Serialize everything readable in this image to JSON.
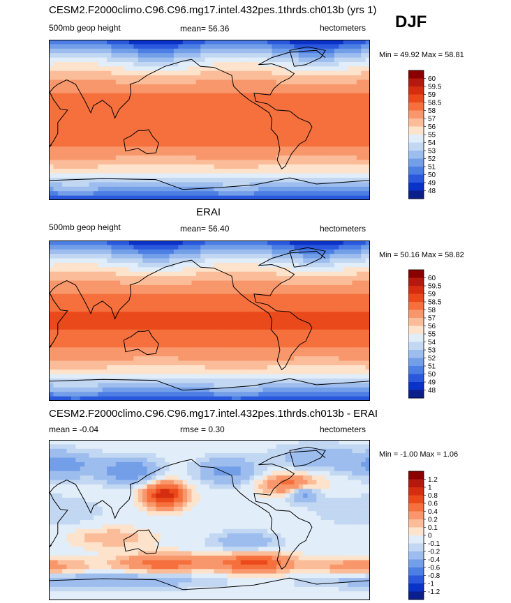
{
  "season": "DJF",
  "panels": [
    {
      "title": "CESM2.F2000climo.C96.C96.mg17.intel.432pes.1thrds.ch013b (yrs 1)",
      "left_label": "500mb geop height",
      "center_label": "mean=  56.36",
      "right_label": "hectometers",
      "minmax": "Min =  49.92 Max =  58.81"
    },
    {
      "title": "ERAI",
      "left_label": "500mb geop height",
      "center_label": "mean=  56.40",
      "right_label": "hectometers",
      "minmax": "Min =  50.16 Max =  58.82"
    },
    {
      "title": "CESM2.F2000climo.C96.C96.mg17.intel.432pes.1thrds.ch013b - ERAI",
      "left_label": "mean =  -0.04",
      "center_label": "rmse =   0.30",
      "right_label": "hectometers",
      "minmax": "Min =  -1.00 Max =   1.06"
    }
  ],
  "chart_data": [
    {
      "type": "heatmap",
      "title": "CESM2.F2000climo.C96.C96.mg17.intel.432pes.1thrds.ch013b (yrs 1)",
      "variable": "500mb geop height",
      "units": "hectometers",
      "mean": 56.36,
      "min": 49.92,
      "max": 58.81,
      "colorbar_levels": [
        "60",
        "59.5",
        "59",
        "58.5",
        "58",
        "57",
        "56",
        "55",
        "54",
        "53",
        "52",
        "51",
        "50",
        "49",
        "48"
      ],
      "colorbar_colors": [
        "#8b0000",
        "#b3190c",
        "#d42d0f",
        "#ea4a1b",
        "#f5703d",
        "#f8976b",
        "#fbbd99",
        "#fde3cc",
        "#e1edf8",
        "#c2d7f2",
        "#9dbdee",
        "#739ee8",
        "#4c7ee3",
        "#2a58dc",
        "#0b32c6",
        "#0a1e8c"
      ]
    },
    {
      "type": "heatmap",
      "title": "ERAI",
      "variable": "500mb geop height",
      "units": "hectometers",
      "mean": 56.4,
      "min": 50.16,
      "max": 58.82,
      "colorbar_levels": [
        "60",
        "59.5",
        "59",
        "58.5",
        "58",
        "57",
        "56",
        "55",
        "54",
        "53",
        "52",
        "51",
        "50",
        "49",
        "48"
      ],
      "colorbar_colors": [
        "#8b0000",
        "#b3190c",
        "#d42d0f",
        "#ea4a1b",
        "#f5703d",
        "#f8976b",
        "#fbbd99",
        "#fde3cc",
        "#e1edf8",
        "#c2d7f2",
        "#9dbdee",
        "#739ee8",
        "#4c7ee3",
        "#2a58dc",
        "#0b32c6",
        "#0a1e8c"
      ]
    },
    {
      "type": "heatmap",
      "title": "CESM2.F2000climo.C96.C96.mg17.intel.432pes.1thrds.ch013b - ERAI",
      "units": "hectometers",
      "mean": -0.04,
      "rmse": 0.3,
      "min": -1.0,
      "max": 1.06,
      "colorbar_levels": [
        "1.2",
        "1",
        "0.8",
        "0.6",
        "0.4",
        "0.2",
        "0.1",
        "0",
        "-0.1",
        "-0.2",
        "-0.4",
        "-0.6",
        "-0.8",
        "-1",
        "-1.2"
      ],
      "colorbar_colors": [
        "#8b0000",
        "#b3190c",
        "#d42d0f",
        "#ea4a1b",
        "#f5703d",
        "#f8976b",
        "#fbbd99",
        "#fde3cc",
        "#e1edf8",
        "#c2d7f2",
        "#9dbdee",
        "#739ee8",
        "#4c7ee3",
        "#2a58dc",
        "#0b32c6",
        "#0a1e8c"
      ]
    }
  ]
}
